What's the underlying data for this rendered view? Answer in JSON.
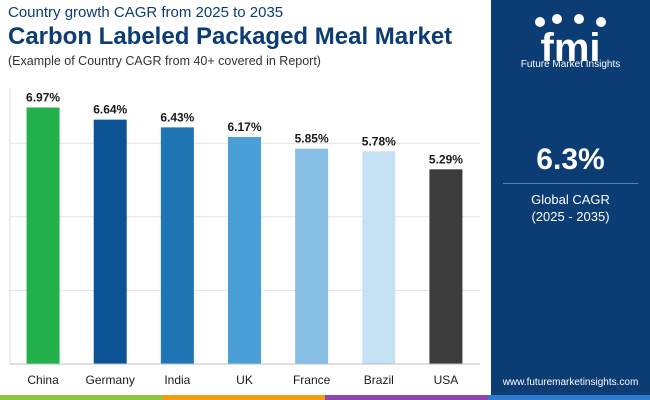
{
  "header": {
    "subtitle": "Country growth CAGR from 2025 to 2035",
    "title": "Carbon Labeled Packaged Meal Market",
    "note": "(Example of Country CAGR from 40+ covered in Report)"
  },
  "chart_data": {
    "type": "bar",
    "categories": [
      "China",
      "Germany",
      "India",
      "UK",
      "France",
      "Brazil",
      "USA"
    ],
    "values": [
      6.97,
      6.64,
      6.43,
      6.17,
      5.85,
      5.78,
      5.29
    ],
    "labels": [
      "6.97%",
      "6.64%",
      "6.43%",
      "6.17%",
      "5.85%",
      "5.78%",
      "5.29%"
    ],
    "colors": [
      "#22b14c",
      "#0b5394",
      "#1f74b4",
      "#4a9fd9",
      "#86bde3",
      "#c5e2f5",
      "#3c3c3c"
    ],
    "ylim": [
      0,
      7.5
    ],
    "gridlines": [
      0,
      2,
      4,
      6
    ],
    "grid": true,
    "title": "",
    "xlabel": "",
    "ylabel": ""
  },
  "sidebar": {
    "logo_text": "fmi",
    "brand": "Future Market Insights",
    "value": "6.3%",
    "label": "Global CAGR",
    "period": "(2025 - 2035)",
    "website": "www.futuremarketinsights.com",
    "logo_icons": [
      "bar-chart-icon",
      "cloud-icon",
      "chart-icon",
      "globe-icon"
    ]
  },
  "theme": {
    "navy": "#0b3c73",
    "footer_colors": [
      "#8bc53f",
      "#f39c12",
      "#8e44ad",
      "#2e7bcf"
    ]
  }
}
